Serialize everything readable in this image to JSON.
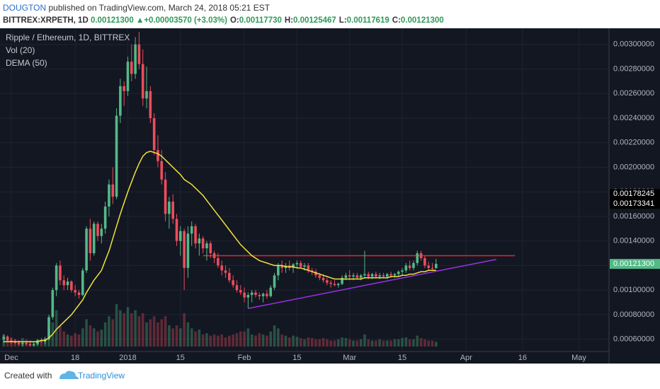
{
  "header": {
    "author": "DOUGTON",
    "published": "published on TradingView.com, March 24, 2018 05:21 EST",
    "symbol": "BITTREX:XRPETH, 1D",
    "last": "0.00121300",
    "arrow": "▲",
    "change": "+0.00003570 (+3.03%)",
    "quote": [
      {
        "label": "O:",
        "value": "0.00117730"
      },
      {
        "label": "H:",
        "value": "0.00125467"
      },
      {
        "label": "L:",
        "value": "0.00117619"
      },
      {
        "label": "C:",
        "value": "0.00121300"
      }
    ]
  },
  "footer": {
    "created": "Created with",
    "brand": "TradingView"
  },
  "chart_data": {
    "type": "candlestick",
    "title": "Ripple / Ethereum, 1D, BITTREX",
    "indicators": [
      "Vol (20)",
      "DEMA (50)"
    ],
    "up_color": "#53b987",
    "down_color": "#eb4d5c",
    "dema_color": "#f2e33a",
    "grid": true,
    "xlim": [
      "2017-11-28",
      "2018-05-09"
    ],
    "ylim": [
      0.00054,
      0.00312
    ],
    "yticks": [
      {
        "value": 0.0006,
        "label": "0.00060000"
      },
      {
        "value": 0.0008,
        "label": "0.00080000"
      },
      {
        "value": 0.001,
        "label": "0.00100000"
      },
      {
        "value": 0.0012,
        "label": "0.00120000"
      },
      {
        "value": 0.0014,
        "label": "0.00140000"
      },
      {
        "value": 0.0016,
        "label": "0.00160000"
      },
      {
        "value": 0.0018,
        "label": "0.00180000"
      },
      {
        "value": 0.002,
        "label": "0.00200000"
      },
      {
        "value": 0.0022,
        "label": "0.00220000"
      },
      {
        "value": 0.0024,
        "label": "0.00240000"
      },
      {
        "value": 0.0026,
        "label": "0.00260000"
      },
      {
        "value": 0.0028,
        "label": "0.00280000"
      },
      {
        "value": 0.003,
        "label": "0.00300000"
      }
    ],
    "xticks": [
      {
        "value": "2017-12-01",
        "label": "Dec"
      },
      {
        "value": "2017-12-18",
        "label": "18"
      },
      {
        "value": "2018-01-01",
        "label": "2018"
      },
      {
        "value": "2018-01-15",
        "label": "15"
      },
      {
        "value": "2018-02-01",
        "label": "Feb"
      },
      {
        "value": "2018-02-15",
        "label": "15"
      },
      {
        "value": "2018-03-01",
        "label": "Mar"
      },
      {
        "value": "2018-03-15",
        "label": "15"
      },
      {
        "value": "2018-04-01",
        "label": "Apr"
      },
      {
        "value": "2018-04-16",
        "label": "16"
      },
      {
        "value": "2018-05-01",
        "label": "May"
      }
    ],
    "price_markers": [
      {
        "value": 0.00178245,
        "label": "0.00178245",
        "color": "#000000"
      },
      {
        "value": 0.00173341,
        "label": "0.00173341",
        "color": "#000000"
      },
      {
        "value": 0.001213,
        "label": "0.00121300",
        "color": "#53b987"
      }
    ],
    "drawings": [
      {
        "color": "#e5262b",
        "points": [
          [
            "2018-01-21",
            0.00128
          ],
          [
            "2018-04-14",
            0.00128
          ]
        ]
      },
      {
        "color": "#9b30e8",
        "points": [
          [
            "2018-02-02",
            0.00085
          ],
          [
            "2018-04-09",
            0.00125
          ]
        ]
      }
    ],
    "x": [
      "2017-11-29",
      "2017-11-30",
      "2017-12-01",
      "2017-12-02",
      "2017-12-03",
      "2017-12-04",
      "2017-12-05",
      "2017-12-06",
      "2017-12-07",
      "2017-12-08",
      "2017-12-09",
      "2017-12-10",
      "2017-12-11",
      "2017-12-12",
      "2017-12-13",
      "2017-12-14",
      "2017-12-15",
      "2017-12-16",
      "2017-12-17",
      "2017-12-18",
      "2017-12-19",
      "2017-12-20",
      "2017-12-21",
      "2017-12-22",
      "2017-12-23",
      "2017-12-24",
      "2017-12-25",
      "2017-12-26",
      "2017-12-27",
      "2017-12-28",
      "2017-12-29",
      "2017-12-30",
      "2017-12-31",
      "2018-01-01",
      "2018-01-02",
      "2018-01-03",
      "2018-01-04",
      "2018-01-05",
      "2018-01-06",
      "2018-01-07",
      "2018-01-08",
      "2018-01-09",
      "2018-01-10",
      "2018-01-11",
      "2018-01-12",
      "2018-01-13",
      "2018-01-14",
      "2018-01-15",
      "2018-01-16",
      "2018-01-17",
      "2018-01-18",
      "2018-01-19",
      "2018-01-20",
      "2018-01-21",
      "2018-01-22",
      "2018-01-23",
      "2018-01-24",
      "2018-01-25",
      "2018-01-26",
      "2018-01-27",
      "2018-01-28",
      "2018-01-29",
      "2018-01-30",
      "2018-01-31",
      "2018-02-01",
      "2018-02-02",
      "2018-02-03",
      "2018-02-04",
      "2018-02-05",
      "2018-02-06",
      "2018-02-07",
      "2018-02-08",
      "2018-02-09",
      "2018-02-10",
      "2018-02-11",
      "2018-02-12",
      "2018-02-13",
      "2018-02-14",
      "2018-02-15",
      "2018-02-16",
      "2018-02-17",
      "2018-02-18",
      "2018-02-19",
      "2018-02-20",
      "2018-02-21",
      "2018-02-22",
      "2018-02-23",
      "2018-02-24",
      "2018-02-25",
      "2018-02-26",
      "2018-02-27",
      "2018-02-28",
      "2018-03-01",
      "2018-03-02",
      "2018-03-03",
      "2018-03-04",
      "2018-03-05",
      "2018-03-06",
      "2018-03-07",
      "2018-03-08",
      "2018-03-09",
      "2018-03-10",
      "2018-03-11",
      "2018-03-12",
      "2018-03-13",
      "2018-03-14",
      "2018-03-15",
      "2018-03-16",
      "2018-03-17",
      "2018-03-18",
      "2018-03-19",
      "2018-03-20",
      "2018-03-21",
      "2018-03-22",
      "2018-03-23",
      "2018-03-24"
    ],
    "ohlc": [
      [
        0.0006,
        0.00064,
        0.00057,
        0.00062
      ],
      [
        0.00062,
        0.00063,
        0.00058,
        0.00059
      ],
      [
        0.00059,
        0.00061,
        0.00056,
        0.00058
      ],
      [
        0.00058,
        0.0006,
        0.00056,
        0.00057
      ],
      [
        0.00057,
        0.00059,
        0.00055,
        0.00056
      ],
      [
        0.00056,
        0.00058,
        0.00054,
        0.00057
      ],
      [
        0.00057,
        0.00058,
        0.00055,
        0.00056
      ],
      [
        0.00056,
        0.00057,
        0.00054,
        0.00055
      ],
      [
        0.00055,
        0.00057,
        0.00054,
        0.00056
      ],
      [
        0.00056,
        0.0006,
        0.00055,
        0.00059
      ],
      [
        0.00059,
        0.00061,
        0.00057,
        0.00058
      ],
      [
        0.00058,
        0.00062,
        0.00056,
        0.0006
      ],
      [
        0.0006,
        0.0008,
        0.00059,
        0.00078
      ],
      [
        0.00078,
        0.00102,
        0.00076,
        0.001
      ],
      [
        0.001,
        0.00122,
        0.00095,
        0.0012
      ],
      [
        0.0012,
        0.00124,
        0.00104,
        0.00108
      ],
      [
        0.00108,
        0.00112,
        0.001,
        0.00104
      ],
      [
        0.00104,
        0.0011,
        0.001,
        0.00107
      ],
      [
        0.00107,
        0.00108,
        0.00098,
        0.001
      ],
      [
        0.001,
        0.00104,
        0.00095,
        0.00098
      ],
      [
        0.00098,
        0.001,
        0.00093,
        0.00096
      ],
      [
        0.00096,
        0.00118,
        0.00095,
        0.00116
      ],
      [
        0.00116,
        0.00152,
        0.00114,
        0.0015
      ],
      [
        0.0015,
        0.00158,
        0.00124,
        0.0013
      ],
      [
        0.0013,
        0.00156,
        0.00128,
        0.00154
      ],
      [
        0.00154,
        0.00156,
        0.0014,
        0.00144
      ],
      [
        0.00144,
        0.00154,
        0.00138,
        0.0015
      ],
      [
        0.0015,
        0.00172,
        0.00146,
        0.00168
      ],
      [
        0.00168,
        0.0019,
        0.0016,
        0.00186
      ],
      [
        0.00186,
        0.002,
        0.0017,
        0.00176
      ],
      [
        0.00176,
        0.00248,
        0.00174,
        0.00242
      ],
      [
        0.00242,
        0.00272,
        0.00236,
        0.00266
      ],
      [
        0.00266,
        0.0027,
        0.0025,
        0.00262
      ],
      [
        0.00262,
        0.0029,
        0.00258,
        0.00286
      ],
      [
        0.00286,
        0.003,
        0.0027,
        0.00276
      ],
      [
        0.00276,
        0.00306,
        0.00272,
        0.003
      ],
      [
        0.003,
        0.0031,
        0.0028,
        0.00284
      ],
      [
        0.00284,
        0.00296,
        0.0025,
        0.00256
      ],
      [
        0.00256,
        0.00282,
        0.00248,
        0.00262
      ],
      [
        0.00262,
        0.00266,
        0.00236,
        0.0024
      ],
      [
        0.0024,
        0.00244,
        0.0021,
        0.00214
      ],
      [
        0.00214,
        0.00226,
        0.002,
        0.00205
      ],
      [
        0.00205,
        0.00214,
        0.00186,
        0.0019
      ],
      [
        0.0019,
        0.00196,
        0.00156,
        0.00162
      ],
      [
        0.00162,
        0.00176,
        0.0015,
        0.00172
      ],
      [
        0.00172,
        0.00178,
        0.00154,
        0.00158
      ],
      [
        0.00158,
        0.00162,
        0.00136,
        0.0014
      ],
      [
        0.0014,
        0.00152,
        0.00128,
        0.00148
      ],
      [
        0.00148,
        0.0015,
        0.001,
        0.00118
      ],
      [
        0.00118,
        0.00152,
        0.0011,
        0.00146
      ],
      [
        0.00146,
        0.00156,
        0.00136,
        0.00152
      ],
      [
        0.00152,
        0.00154,
        0.00134,
        0.00138
      ],
      [
        0.00138,
        0.00146,
        0.00128,
        0.00142
      ],
      [
        0.00142,
        0.00144,
        0.0013,
        0.00134
      ],
      [
        0.00134,
        0.0014,
        0.00124,
        0.00138
      ],
      [
        0.00138,
        0.0014,
        0.00126,
        0.0013
      ],
      [
        0.0013,
        0.00132,
        0.00122,
        0.00126
      ],
      [
        0.00126,
        0.0013,
        0.00118,
        0.0012
      ],
      [
        0.0012,
        0.00124,
        0.00112,
        0.00116
      ],
      [
        0.00116,
        0.0012,
        0.0011,
        0.00114
      ],
      [
        0.00114,
        0.00118,
        0.00106,
        0.00108
      ],
      [
        0.00108,
        0.00112,
        0.00102,
        0.00104
      ],
      [
        0.00104,
        0.00108,
        0.00098,
        0.001
      ],
      [
        0.001,
        0.00104,
        0.00096,
        0.00098
      ],
      [
        0.00098,
        0.00102,
        0.0009,
        0.00094
      ],
      [
        0.00094,
        0.00098,
        0.00085,
        0.00096
      ],
      [
        0.00096,
        0.001,
        0.0009,
        0.00098
      ],
      [
        0.00098,
        0.001,
        0.00094,
        0.00096
      ],
      [
        0.00096,
        0.00098,
        0.00092,
        0.00095
      ],
      [
        0.00095,
        0.00098,
        0.0009,
        0.00097
      ],
      [
        0.00097,
        0.001,
        0.00093,
        0.00095
      ],
      [
        0.00095,
        0.00104,
        0.00094,
        0.00102
      ],
      [
        0.00102,
        0.00114,
        0.001,
        0.00112
      ],
      [
        0.00112,
        0.00122,
        0.00108,
        0.0012
      ],
      [
        0.0012,
        0.00124,
        0.00114,
        0.00118
      ],
      [
        0.00118,
        0.00122,
        0.00114,
        0.0012
      ],
      [
        0.0012,
        0.00124,
        0.00116,
        0.00118
      ],
      [
        0.00118,
        0.00122,
        0.00114,
        0.00121
      ],
      [
        0.00121,
        0.00124,
        0.00118,
        0.00122
      ],
      [
        0.00122,
        0.00124,
        0.00118,
        0.00119
      ],
      [
        0.00119,
        0.00122,
        0.00116,
        0.0012
      ],
      [
        0.0012,
        0.00122,
        0.00114,
        0.00116
      ],
      [
        0.00116,
        0.00118,
        0.00112,
        0.00115
      ],
      [
        0.00115,
        0.00117,
        0.0011,
        0.00112
      ],
      [
        0.00112,
        0.00114,
        0.00108,
        0.0011
      ],
      [
        0.0011,
        0.00113,
        0.00106,
        0.00108
      ],
      [
        0.00108,
        0.0011,
        0.00104,
        0.00106
      ],
      [
        0.00106,
        0.00108,
        0.00102,
        0.00105
      ],
      [
        0.00105,
        0.00108,
        0.00103,
        0.00104
      ],
      [
        0.00104,
        0.00106,
        0.00102,
        0.00105
      ],
      [
        0.00105,
        0.00112,
        0.00104,
        0.0011
      ],
      [
        0.0011,
        0.00114,
        0.00108,
        0.00112
      ],
      [
        0.00112,
        0.00116,
        0.00108,
        0.00111
      ],
      [
        0.00111,
        0.00114,
        0.00108,
        0.00112
      ],
      [
        0.00112,
        0.00114,
        0.00109,
        0.0011
      ],
      [
        0.0011,
        0.00113,
        0.00108,
        0.00112
      ],
      [
        0.00112,
        0.00132,
        0.0011,
        0.00113
      ],
      [
        0.00113,
        0.00115,
        0.00109,
        0.00111
      ],
      [
        0.00111,
        0.00114,
        0.00109,
        0.00113
      ],
      [
        0.00113,
        0.00115,
        0.0011,
        0.00111
      ],
      [
        0.00111,
        0.00114,
        0.00109,
        0.00112
      ],
      [
        0.00112,
        0.00114,
        0.0011,
        0.00111
      ],
      [
        0.00111,
        0.00114,
        0.00109,
        0.00113
      ],
      [
        0.00113,
        0.00115,
        0.0011,
        0.00112
      ],
      [
        0.00112,
        0.00114,
        0.0011,
        0.00113
      ],
      [
        0.00113,
        0.00116,
        0.00111,
        0.00115
      ],
      [
        0.00115,
        0.00118,
        0.00112,
        0.00116
      ],
      [
        0.00116,
        0.00122,
        0.00114,
        0.0012
      ],
      [
        0.0012,
        0.00124,
        0.00116,
        0.00118
      ],
      [
        0.00118,
        0.00124,
        0.00116,
        0.00122
      ],
      [
        0.00122,
        0.00132,
        0.0012,
        0.0013
      ],
      [
        0.0013,
        0.00132,
        0.00124,
        0.00126
      ],
      [
        0.00126,
        0.00128,
        0.00118,
        0.0012
      ],
      [
        0.0012,
        0.00123,
        0.00116,
        0.00118
      ],
      [
        0.00118,
        0.00122,
        0.00116,
        0.0011773
      ],
      [
        0.0011773,
        0.00125467,
        0.00117619,
        0.001213
      ]
    ],
    "volume": [
      20,
      18,
      15,
      12,
      10,
      14,
      12,
      10,
      8,
      12,
      10,
      14,
      30,
      40,
      60,
      35,
      25,
      20,
      18,
      22,
      20,
      30,
      45,
      35,
      30,
      25,
      28,
      40,
      50,
      45,
      70,
      60,
      55,
      65,
      55,
      60,
      50,
      55,
      40,
      45,
      50,
      40,
      45,
      50,
      35,
      30,
      35,
      30,
      55,
      40,
      30,
      25,
      28,
      20,
      22,
      18,
      20,
      18,
      20,
      15,
      18,
      20,
      22,
      25,
      25,
      30,
      20,
      18,
      22,
      20,
      18,
      25,
      35,
      30,
      20,
      18,
      15,
      18,
      16,
      14,
      12,
      15,
      14,
      12,
      12,
      14,
      12,
      10,
      10,
      12,
      15,
      14,
      12,
      10,
      10,
      12,
      20,
      12,
      10,
      10,
      12,
      10,
      10,
      10,
      12,
      12,
      14,
      15,
      12,
      12,
      18,
      14,
      12,
      10,
      10,
      8
    ],
    "dema": [
      0.00058,
      0.00058,
      0.00058,
      0.00058,
      0.00058,
      0.00058,
      0.00058,
      0.00058,
      0.00058,
      0.00058,
      0.00059,
      0.00059,
      0.00061,
      0.00064,
      0.00068,
      0.00071,
      0.00074,
      0.00077,
      0.0008,
      0.00084,
      0.00088,
      0.00092,
      0.00098,
      0.00103,
      0.00108,
      0.00112,
      0.00116,
      0.00124,
      0.00132,
      0.00142,
      0.00152,
      0.00162,
      0.00171,
      0.0018,
      0.00188,
      0.00196,
      0.00203,
      0.00209,
      0.00212,
      0.00213,
      0.00212,
      0.00211,
      0.00209,
      0.00206,
      0.00203,
      0.002,
      0.00197,
      0.00194,
      0.0019,
      0.00188,
      0.00186,
      0.00183,
      0.0018,
      0.00177,
      0.00173,
      0.00169,
      0.00165,
      0.00161,
      0.00157,
      0.00153,
      0.00149,
      0.00145,
      0.00141,
      0.00137,
      0.00134,
      0.00131,
      0.00128,
      0.00126,
      0.00124,
      0.00123,
      0.00122,
      0.00121,
      0.0012,
      0.0012,
      0.0012,
      0.00119,
      0.00119,
      0.00119,
      0.00118,
      0.00118,
      0.00117,
      0.00116,
      0.00115,
      0.00114,
      0.00113,
      0.00112,
      0.00111,
      0.0011,
      0.00109,
      0.00109,
      0.00109,
      0.00109,
      0.00109,
      0.00109,
      0.00109,
      0.00109,
      0.0011,
      0.0011,
      0.0011,
      0.0011,
      0.0011,
      0.0011,
      0.0011,
      0.00111,
      0.00111,
      0.00111,
      0.00112,
      0.00112,
      0.00113,
      0.00113,
      0.00114,
      0.00115,
      0.00115,
      0.00116,
      0.00116,
      0.00116
    ]
  }
}
